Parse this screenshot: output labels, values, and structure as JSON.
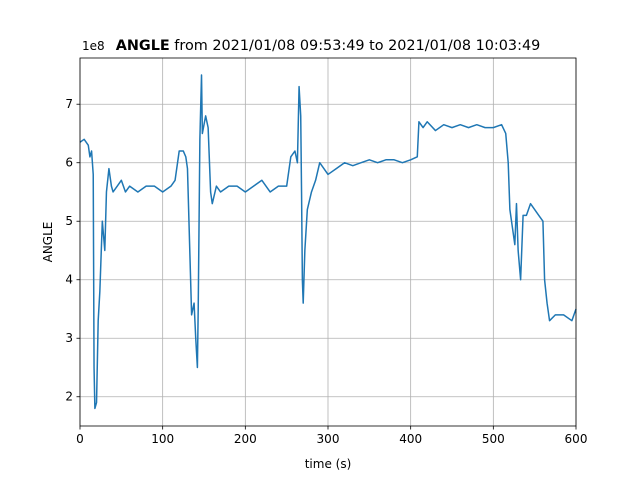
{
  "chart_data": {
    "type": "line",
    "title_signal": "ANGLE",
    "title_range": "from 2021/01/08 09:53:49 to 2021/01/08 10:03:49",
    "xlabel": "time (s)",
    "ylabel": "ANGLE",
    "y_offset_label": "1e8",
    "x": [
      0,
      5,
      10,
      12,
      14,
      16,
      17,
      18,
      20,
      22,
      24,
      27,
      30,
      32,
      35,
      38,
      40,
      45,
      50,
      55,
      60,
      70,
      80,
      90,
      100,
      110,
      115,
      120,
      125,
      128,
      130,
      133,
      135,
      138,
      140,
      142,
      143,
      145,
      147,
      148,
      152,
      155,
      158,
      160,
      165,
      170,
      180,
      190,
      200,
      210,
      220,
      230,
      240,
      250,
      255,
      260,
      263,
      265,
      267,
      268,
      269,
      270,
      272,
      275,
      280,
      285,
      290,
      295,
      300,
      310,
      320,
      330,
      340,
      350,
      360,
      370,
      380,
      390,
      400,
      408,
      410,
      415,
      420,
      430,
      440,
      450,
      460,
      470,
      480,
      490,
      500,
      510,
      515,
      518,
      520,
      523,
      526,
      528,
      530,
      533,
      536,
      540,
      545,
      550,
      555,
      560,
      562,
      565,
      568,
      575,
      585,
      595,
      600
    ],
    "series": [
      {
        "name": "ANGLE",
        "color": "#1f77b4",
        "values": [
          6.35,
          6.4,
          6.3,
          6.1,
          6.2,
          5.8,
          2.5,
          1.8,
          1.9,
          3.3,
          3.8,
          5.0,
          4.5,
          5.5,
          5.9,
          5.6,
          5.5,
          5.6,
          5.7,
          5.5,
          5.6,
          5.5,
          5.6,
          5.6,
          5.5,
          5.6,
          5.7,
          6.2,
          6.2,
          6.1,
          5.9,
          4.4,
          3.4,
          3.6,
          3.0,
          2.5,
          3.5,
          6.4,
          7.5,
          6.5,
          6.8,
          6.6,
          5.5,
          5.3,
          5.6,
          5.5,
          5.6,
          5.6,
          5.5,
          5.6,
          5.7,
          5.5,
          5.6,
          5.6,
          6.1,
          6.2,
          6.0,
          7.3,
          6.8,
          5.5,
          4.0,
          3.6,
          4.5,
          5.2,
          5.5,
          5.7,
          6.0,
          5.9,
          5.8,
          5.9,
          6.0,
          5.95,
          6.0,
          6.05,
          6.0,
          6.05,
          6.05,
          6.0,
          6.05,
          6.1,
          6.7,
          6.6,
          6.7,
          6.55,
          6.65,
          6.6,
          6.65,
          6.6,
          6.65,
          6.6,
          6.6,
          6.65,
          6.5,
          6.0,
          5.2,
          4.9,
          4.6,
          5.3,
          4.5,
          4.0,
          5.1,
          5.1,
          5.3,
          5.2,
          5.1,
          5.0,
          4.0,
          3.6,
          3.3,
          3.4,
          3.4,
          3.3,
          3.5
        ]
      }
    ],
    "xlim": [
      0,
      600
    ],
    "xticks": [
      0,
      100,
      200,
      300,
      400,
      500,
      600
    ],
    "ylim": [
      1.5,
      7.79
    ],
    "yticks": [
      2,
      3,
      4,
      5,
      6,
      7
    ],
    "grid": true
  }
}
